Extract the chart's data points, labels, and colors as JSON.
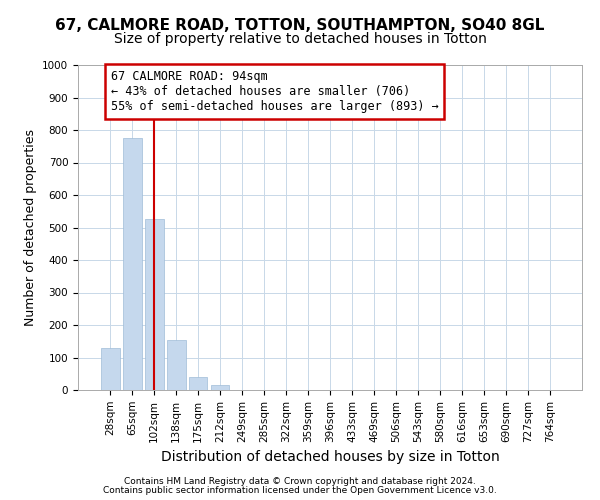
{
  "title1": "67, CALMORE ROAD, TOTTON, SOUTHAMPTON, SO40 8GL",
  "title2": "Size of property relative to detached houses in Totton",
  "xlabel": "Distribution of detached houses by size in Totton",
  "ylabel": "Number of detached properties",
  "categories": [
    "28sqm",
    "65sqm",
    "102sqm",
    "138sqm",
    "175sqm",
    "212sqm",
    "249sqm",
    "285sqm",
    "322sqm",
    "359sqm",
    "396sqm",
    "433sqm",
    "469sqm",
    "506sqm",
    "543sqm",
    "580sqm",
    "616sqm",
    "653sqm",
    "690sqm",
    "727sqm",
    "764sqm"
  ],
  "bar_values": [
    130,
    775,
    525,
    155,
    40,
    15,
    0,
    0,
    0,
    0,
    0,
    0,
    0,
    0,
    0,
    0,
    0,
    0,
    0,
    0,
    0
  ],
  "bar_color": "#c5d8ed",
  "bar_edge_color": "#a0bcd8",
  "vline_x": 2.0,
  "vline_color": "#cc0000",
  "annotation_text_line1": "67 CALMORE ROAD: 94sqm",
  "annotation_text_line2": "← 43% of detached houses are smaller (706)",
  "annotation_text_line3": "55% of semi-detached houses are larger (893) →",
  "annotation_edge_color": "#cc0000",
  "ylim_max": 1000,
  "yticks": [
    0,
    100,
    200,
    300,
    400,
    500,
    600,
    700,
    800,
    900,
    1000
  ],
  "footer1": "Contains HM Land Registry data © Crown copyright and database right 2024.",
  "footer2": "Contains public sector information licensed under the Open Government Licence v3.0.",
  "bg_color": "#ffffff",
  "grid_color": "#c8d8e8",
  "title1_fontsize": 11,
  "title2_fontsize": 10,
  "ylabel_fontsize": 9,
  "xlabel_fontsize": 10,
  "tick_fontsize": 7.5,
  "annotation_fontsize": 8.5,
  "footer_fontsize": 6.5
}
